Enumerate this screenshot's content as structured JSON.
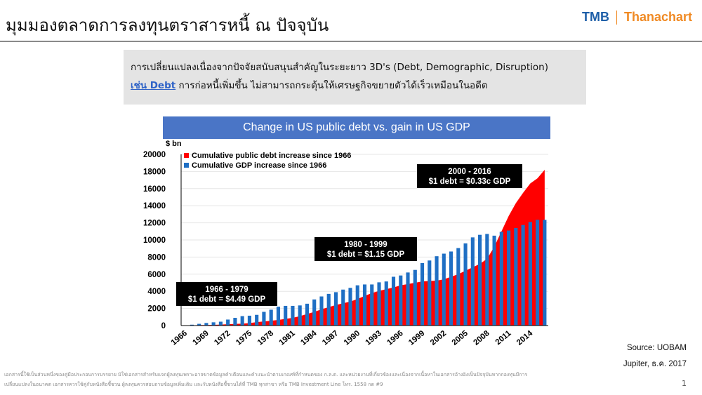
{
  "page": {
    "title": "มุมมองตลาดการลงทุนตราสารหนี้ ณ ปัจจุบัน",
    "page_number": "1"
  },
  "logo": {
    "left": "TMB",
    "right": "Thanachart"
  },
  "callout": {
    "line1": "การเปลี่ยนแปลงเนื่องจากปัจจัยสนับสนุนสำคัญในระยะยาว 3D's (Debt, Demographic, Disruption)",
    "highlight": "เช่น Debt",
    "line2_rest": " การก่อหนี้เพิ่มขึ้น ไม่สามารถกระตุ้นให้เศรษฐกิจขยายตัวได้เร็วเหมือนในอดีต"
  },
  "source": {
    "line1": "Source: UOBAM",
    "line2": "Jupiter, ธ.ค. 2017"
  },
  "disclaimer": {
    "line1": "เอกสารนี้ใช้เป็นส่วนหนึ่งของคู่มือประกอบการบรรยาย มิใช่เอกสารสำหรับแจกผู้ลงทุนเพราะอาจขาดข้อมูลคำเตือนและคำแนะนำตามเกณฑ์ที่กำหนดของ ก.ล.ต. และหน่วยงานที่เกี่ยวข้องและเนื่องจากเนื้อหาในเอกสารอ้างอิงเป็นปัจจุบันหากกองทุนมีการ",
    "line2": "เปลี่ยนแปลงในอนาคต เอกสารควรใช้คู่กับหนังสือชี้ชวน ผู้ลงทุนควรสอบถามข้อมูลเพิ่มเติม และรับหนังสือชี้ชวนได้ที่ TMB ทุกสาขา หรือ TMB Investment Line โทร. 1558 กด #9"
  },
  "chart_data": {
    "type": "bar",
    "title": "Change in US public debt vs. gain in US GDP",
    "ylabel": "$ bn",
    "ylim": [
      0,
      20000
    ],
    "yticks": [
      0,
      2000,
      4000,
      6000,
      8000,
      10000,
      12000,
      14000,
      16000,
      18000,
      20000
    ],
    "xtick_labels": [
      "1966",
      "1969",
      "1972",
      "1975",
      "1978",
      "1981",
      "1984",
      "1987",
      "1990",
      "1993",
      "1996",
      "1999",
      "2002",
      "2005",
      "2008",
      "2011",
      "2014"
    ],
    "legend_position": "top-left",
    "colors": {
      "debt": "#ff0000",
      "gdp": "#1f6fc4"
    },
    "x": [
      1966,
      1967,
      1968,
      1969,
      1970,
      1971,
      1972,
      1973,
      1974,
      1975,
      1976,
      1977,
      1978,
      1979,
      1980,
      1981,
      1982,
      1983,
      1984,
      1985,
      1986,
      1987,
      1988,
      1989,
      1990,
      1991,
      1992,
      1993,
      1994,
      1995,
      1996,
      1997,
      1998,
      1999,
      2000,
      2001,
      2002,
      2003,
      2004,
      2005,
      2006,
      2007,
      2008,
      2009,
      2010,
      2011,
      2012,
      2013,
      2014,
      2015,
      2016
    ],
    "series": [
      {
        "name": "Cumulative public debt increase since 1966",
        "type": "area",
        "values": [
          0,
          20,
          60,
          60,
          80,
          110,
          150,
          190,
          220,
          290,
          400,
          480,
          560,
          660,
          780,
          900,
          1100,
          1350,
          1600,
          1900,
          2150,
          2400,
          2600,
          2800,
          3100,
          3450,
          3800,
          4050,
          4250,
          4450,
          4700,
          4850,
          5000,
          5150,
          5200,
          5250,
          5400,
          5700,
          6000,
          6400,
          6800,
          7200,
          7800,
          9200,
          11000,
          12800,
          14300,
          15500,
          16600,
          17200,
          18200
        ]
      },
      {
        "name": "Cumulative GDP increase since 1966",
        "type": "bar",
        "values": [
          0,
          100,
          200,
          300,
          380,
          450,
          700,
          900,
          1100,
          1150,
          1250,
          1600,
          1850,
          2200,
          2300,
          2300,
          2350,
          2550,
          3050,
          3400,
          3700,
          3900,
          4200,
          4400,
          4700,
          4800,
          4800,
          5050,
          5150,
          5700,
          5850,
          6200,
          6500,
          7300,
          7600,
          8100,
          8400,
          8650,
          9050,
          9600,
          10300,
          10600,
          10700,
          10500,
          10950,
          11100,
          11400,
          11750,
          12100,
          12350,
          12350
        ]
      }
    ],
    "annotations": [
      {
        "label_line1": "1966 - 1979",
        "label_line2": "$1 debt = $4.49 GDP"
      },
      {
        "label_line1": "1980 - 1999",
        "label_line2": "$1 debt = $1.15 GDP"
      },
      {
        "label_line1": "2000 - 2016",
        "label_line2": "$1 debt = $0.33c GDP"
      }
    ]
  }
}
